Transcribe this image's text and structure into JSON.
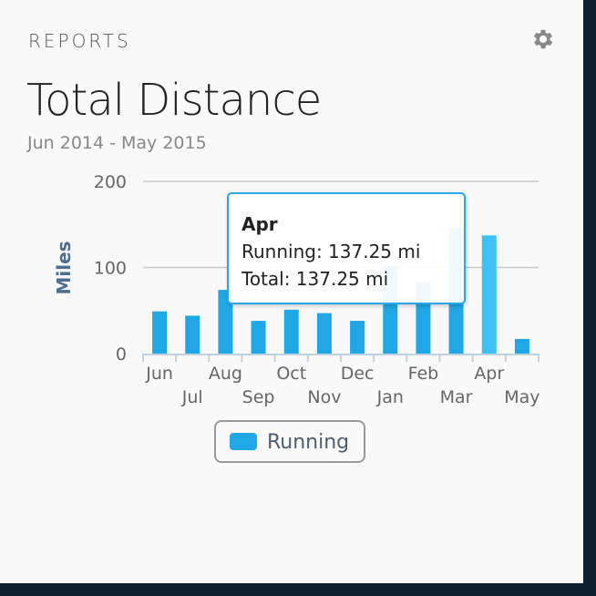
{
  "header": {
    "eyebrow": "REPORTS",
    "settings_icon": "gear-icon",
    "title": "Total Distance",
    "subtitle": "Jun 2014 - May 2015"
  },
  "chart_data": {
    "type": "bar",
    "categories": [
      "Jun",
      "Jul",
      "Aug",
      "Sep",
      "Oct",
      "Nov",
      "Dec",
      "Jan",
      "Feb",
      "Mar",
      "Apr",
      "May"
    ],
    "series": [
      {
        "name": "Running",
        "values": [
          49,
          44,
          74,
          38,
          51,
          47,
          38,
          102,
          83,
          146,
          137.25,
          17
        ],
        "color": "#22a7e6"
      }
    ],
    "ylabel": "Miles",
    "ylim": [
      0,
      200
    ],
    "yticks": [
      "0",
      "100",
      "200"
    ],
    "grid": true,
    "highlighted_category": "Apr",
    "highlight_color": "#3ec1f7",
    "legend": "bottom"
  },
  "tooltip": {
    "title": "Apr",
    "line1": "Running: 137.25 mi",
    "line2": "Total: 137.25 mi"
  },
  "legend": {
    "label": "Running"
  }
}
